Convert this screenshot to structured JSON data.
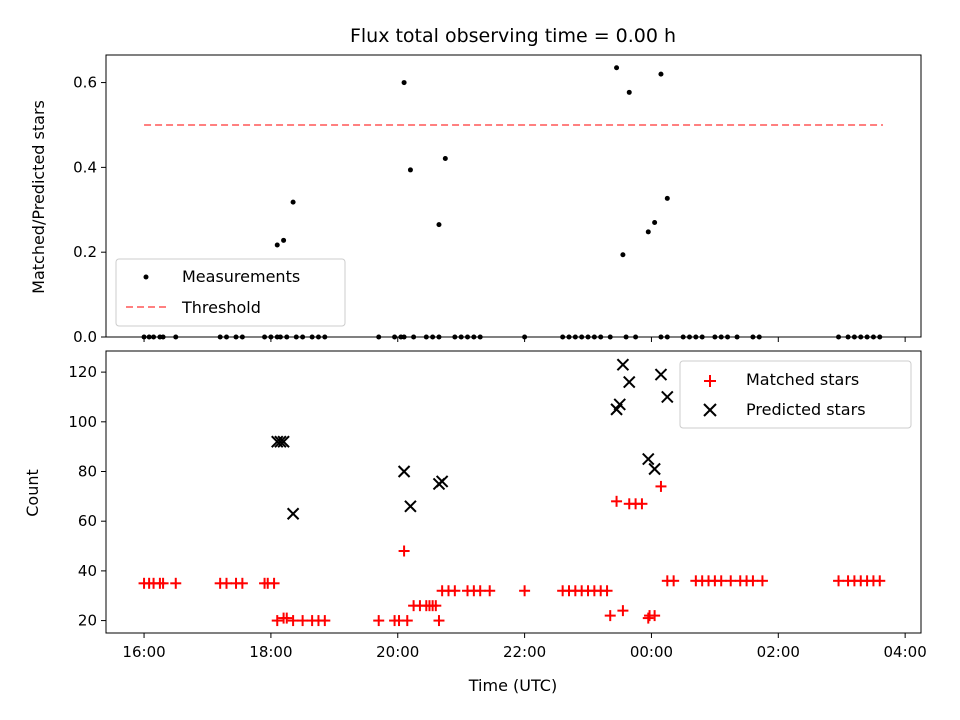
{
  "chart_data": [
    {
      "type": "scatter",
      "title": "Flux total observing time = 0.00 h",
      "xlabel": "",
      "ylabel": "Matched/Predicted stars",
      "xlim": [
        15.4,
        28.25
      ],
      "ylim": [
        0,
        0.665
      ],
      "yticks": [
        0.0,
        0.2,
        0.4,
        0.6
      ],
      "ytick_labels": [
        "0.0",
        "0.2",
        "0.4",
        "0.6"
      ],
      "legend_position": "lower-left",
      "series": [
        {
          "name": "Measurements",
          "kind": "scatter",
          "color": "#000000",
          "x": [
            16.0,
            16.08,
            16.15,
            16.25,
            16.3,
            16.5,
            17.2,
            17.3,
            17.45,
            17.55,
            17.9,
            18.0,
            18.1,
            18.15,
            18.25,
            18.4,
            18.5,
            18.65,
            18.75,
            18.85,
            19.7,
            19.95,
            20.05,
            20.1,
            20.25,
            20.45,
            20.55,
            20.65,
            20.9,
            21.0,
            21.1,
            21.2,
            21.3,
            22.0,
            22.6,
            22.7,
            22.8,
            22.9,
            23.0,
            23.1,
            23.2,
            23.35,
            23.6,
            23.75,
            24.15,
            24.25,
            24.5,
            24.6,
            24.7,
            24.8,
            25.0,
            25.1,
            25.2,
            25.35,
            25.6,
            25.7,
            26.95,
            27.1,
            27.2,
            27.3,
            27.4,
            27.5,
            27.6,
            18.1,
            18.2,
            18.35,
            20.1,
            20.2,
            20.65,
            20.75,
            23.45,
            23.55,
            23.65,
            23.95,
            24.05,
            24.15,
            24.25
          ],
          "y": [
            0,
            0,
            0,
            0,
            0,
            0,
            0,
            0,
            0,
            0,
            0,
            0,
            0,
            0,
            0,
            0,
            0,
            0,
            0,
            0,
            0,
            0,
            0,
            0,
            0,
            0,
            0,
            0,
            0,
            0,
            0,
            0,
            0,
            0,
            0,
            0,
            0,
            0,
            0,
            0,
            0,
            0,
            0,
            0,
            0,
            0,
            0,
            0,
            0,
            0,
            0,
            0,
            0,
            0,
            0,
            0,
            0,
            0,
            0,
            0,
            0,
            0,
            0,
            0.217,
            0.228,
            0.318,
            0.6,
            0.394,
            0.265,
            0.421,
            0.635,
            0.194,
            0.577,
            0.248,
            0.27,
            0.62,
            0.327
          ]
        },
        {
          "name": "Threshold",
          "kind": "line",
          "dashed": true,
          "color": "#ff8080",
          "x": [
            16.0,
            27.65
          ],
          "y": [
            0.5,
            0.5
          ]
        }
      ]
    },
    {
      "type": "scatter",
      "title": "",
      "xlabel": "Time (UTC)",
      "ylabel": "Count",
      "xlim": [
        15.4,
        28.25
      ],
      "ylim": [
        15,
        128.5
      ],
      "xticks": [
        16,
        18,
        20,
        22,
        24,
        26,
        28
      ],
      "xtick_labels": [
        "16:00",
        "18:00",
        "20:00",
        "22:00",
        "00:00",
        "02:00",
        "04:00"
      ],
      "yticks": [
        20,
        40,
        60,
        80,
        100,
        120
      ],
      "ytick_labels": [
        "20",
        "40",
        "60",
        "80",
        "100",
        "120"
      ],
      "legend_position": "top-right",
      "series": [
        {
          "name": "Matched stars",
          "kind": "scatter",
          "marker": "plus",
          "color": "#ff0000",
          "x": [
            16.0,
            16.08,
            16.15,
            16.25,
            16.3,
            16.5,
            17.2,
            17.3,
            17.45,
            17.55,
            17.9,
            17.95,
            18.05,
            18.1,
            18.2,
            18.25,
            18.35,
            18.5,
            18.65,
            18.75,
            18.85,
            19.7,
            19.95,
            20.02,
            20.1,
            20.15,
            20.25,
            20.35,
            20.45,
            20.5,
            20.55,
            20.6,
            20.65,
            20.7,
            20.8,
            20.9,
            21.1,
            21.2,
            21.3,
            21.45,
            22.0,
            22.6,
            22.7,
            22.8,
            22.9,
            23.0,
            23.1,
            23.2,
            23.3,
            23.35,
            23.45,
            23.55,
            23.65,
            23.75,
            23.85,
            23.95,
            23.97,
            24.05,
            24.15,
            24.25,
            24.35,
            24.7,
            24.8,
            24.9,
            25.0,
            25.1,
            25.25,
            25.4,
            25.5,
            25.6,
            25.75,
            26.95,
            27.1,
            27.2,
            27.3,
            27.4,
            27.5,
            27.6
          ],
          "y": [
            35,
            35,
            35,
            35,
            35,
            35,
            35,
            35,
            35,
            35,
            35,
            35,
            35,
            20,
            21,
            21,
            20,
            20,
            20,
            20,
            20,
            20,
            20,
            20,
            48,
            20,
            26,
            26,
            26,
            26,
            26,
            26,
            20,
            32,
            32,
            32,
            32,
            32,
            32,
            32,
            32,
            32,
            32,
            32,
            32,
            32,
            32,
            32,
            32,
            22,
            68,
            24,
            67,
            67,
            67,
            21,
            22,
            22,
            74,
            36,
            36,
            36,
            36,
            36,
            36,
            36,
            36,
            36,
            36,
            36,
            36,
            36,
            36,
            36,
            36,
            36,
            36,
            36
          ]
        },
        {
          "name": "Predicted stars",
          "kind": "scatter",
          "marker": "x",
          "color": "#000000",
          "x": [
            18.1,
            18.15,
            18.2,
            18.35,
            20.1,
            20.2,
            20.65,
            20.7,
            23.45,
            23.5,
            23.55,
            23.65,
            23.95,
            24.05,
            24.15,
            24.25
          ],
          "y": [
            92,
            92,
            92,
            63,
            80,
            66,
            75,
            76,
            105,
            107,
            123,
            116,
            85,
            81,
            119,
            110
          ]
        }
      ]
    }
  ]
}
